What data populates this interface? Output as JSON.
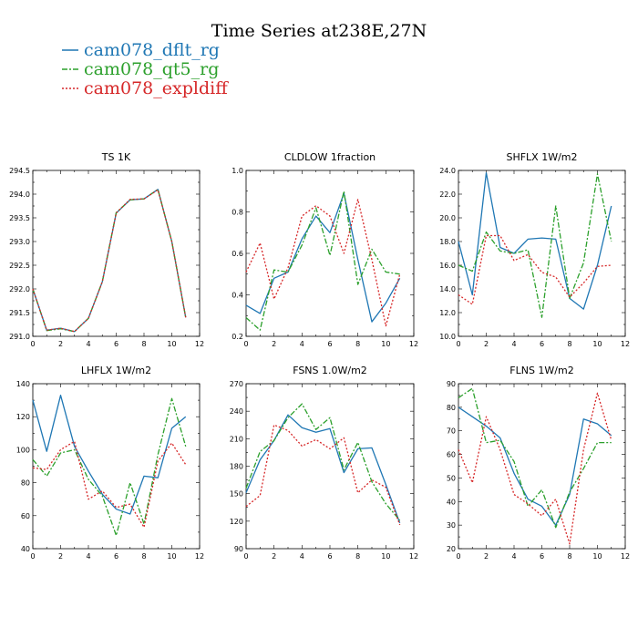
{
  "figure": {
    "title": "Time Series at238E,27N"
  },
  "legend": [
    {
      "name": "cam078_dflt_rg",
      "color": "#1f77b4",
      "dash": "solid"
    },
    {
      "name": "cam078_qt5_rg",
      "color": "#2ca02c",
      "dash": "longdash"
    },
    {
      "name": "cam078_expldiff",
      "color": "#d62728",
      "dash": "dotted"
    }
  ],
  "chart_data": [
    {
      "type": "line",
      "title": "TS   1K",
      "x": [
        0,
        1,
        2,
        3,
        4,
        5,
        6,
        7,
        8,
        9,
        10,
        11
      ],
      "xlim": [
        0,
        12
      ],
      "xticks": [
        0,
        2,
        4,
        6,
        8,
        10,
        12
      ],
      "ylim": [
        291.0,
        294.5
      ],
      "yticks": [
        291.0,
        291.5,
        292.0,
        292.5,
        293.0,
        293.5,
        294.0,
        294.5
      ],
      "ydecimals": 1,
      "series": [
        {
          "name": "cam078_dflt_rg",
          "values": [
            292.0,
            291.13,
            291.17,
            291.1,
            291.38,
            292.15,
            293.6,
            293.88,
            293.9,
            294.1,
            293.0,
            291.4
          ]
        },
        {
          "name": "cam078_qt5_rg",
          "values": [
            292.0,
            291.12,
            291.16,
            291.1,
            291.38,
            292.15,
            293.61,
            293.88,
            293.9,
            294.1,
            293.0,
            291.4
          ]
        },
        {
          "name": "cam078_expldiff",
          "values": [
            292.0,
            291.13,
            291.17,
            291.1,
            291.38,
            292.15,
            293.6,
            293.89,
            293.9,
            294.09,
            293.0,
            291.4
          ]
        }
      ]
    },
    {
      "type": "line",
      "title": "CLDLOW   1fraction",
      "x": [
        0,
        1,
        2,
        3,
        4,
        5,
        6,
        7,
        8,
        9,
        10,
        11
      ],
      "xlim": [
        0,
        12
      ],
      "xticks": [
        0,
        2,
        4,
        6,
        8,
        10,
        12
      ],
      "ylim": [
        0.2,
        1.0
      ],
      "yticks": [
        0.2,
        0.4,
        0.6,
        0.8,
        1.0
      ],
      "ydecimals": 1,
      "series": [
        {
          "name": "cam078_dflt_rg",
          "values": [
            0.35,
            0.31,
            0.48,
            0.51,
            0.67,
            0.78,
            0.7,
            0.89,
            0.57,
            0.27,
            0.36,
            0.48
          ]
        },
        {
          "name": "cam078_qt5_rg",
          "values": [
            0.29,
            0.23,
            0.52,
            0.51,
            0.64,
            0.82,
            0.59,
            0.9,
            0.45,
            0.62,
            0.51,
            0.5
          ]
        },
        {
          "name": "cam078_expldiff",
          "values": [
            0.51,
            0.65,
            0.38,
            0.53,
            0.78,
            0.83,
            0.78,
            0.6,
            0.86,
            0.57,
            0.25,
            0.5
          ]
        }
      ]
    },
    {
      "type": "line",
      "title": "SHFLX   1W/m2",
      "x": [
        0,
        1,
        2,
        3,
        4,
        5,
        6,
        7,
        8,
        9,
        10,
        11
      ],
      "xlim": [
        0,
        12
      ],
      "xticks": [
        0,
        2,
        4,
        6,
        8,
        10,
        12
      ],
      "ylim": [
        10.0,
        24.0
      ],
      "yticks": [
        10.0,
        12.0,
        14.0,
        16.0,
        18.0,
        20.0,
        22.0,
        24.0
      ],
      "ydecimals": 1,
      "series": [
        {
          "name": "cam078_dflt_rg",
          "values": [
            18.0,
            13.5,
            23.8,
            17.5,
            17.0,
            18.2,
            18.3,
            18.2,
            13.2,
            12.3,
            16.0,
            21.0
          ]
        },
        {
          "name": "cam078_qt5_rg",
          "values": [
            16.0,
            15.5,
            18.8,
            17.2,
            17.0,
            17.3,
            11.6,
            21.0,
            13.2,
            16.2,
            23.7,
            18.0
          ]
        },
        {
          "name": "cam078_expldiff",
          "values": [
            13.5,
            12.7,
            18.5,
            18.5,
            16.4,
            16.9,
            15.4,
            15.0,
            13.3,
            14.5,
            15.9,
            16.0
          ]
        }
      ]
    },
    {
      "type": "line",
      "title": "LHFLX   1W/m2",
      "x": [
        0,
        1,
        2,
        3,
        4,
        5,
        6,
        7,
        8,
        9,
        10,
        11
      ],
      "xlim": [
        0,
        12
      ],
      "xticks": [
        0,
        2,
        4,
        6,
        8,
        10,
        12
      ],
      "ylim": [
        40,
        140
      ],
      "yticks": [
        40,
        60,
        80,
        100,
        120,
        140
      ],
      "ydecimals": 0,
      "series": [
        {
          "name": "cam078_dflt_rg",
          "values": [
            130,
            99,
            133,
            102,
            87,
            73,
            64,
            61,
            84,
            83,
            113,
            120
          ]
        },
        {
          "name": "cam078_qt5_rg",
          "values": [
            94,
            84,
            98,
            100,
            82,
            72,
            48,
            80,
            55,
            97,
            131,
            102
          ]
        },
        {
          "name": "cam078_expldiff",
          "values": [
            89,
            88,
            100,
            105,
            70,
            75,
            65,
            67,
            53,
            93,
            104,
            91
          ]
        }
      ]
    },
    {
      "type": "line",
      "title": "FSNS   1.0W/m2",
      "x": [
        0,
        1,
        2,
        3,
        4,
        5,
        6,
        7,
        8,
        9,
        10,
        11
      ],
      "xlim": [
        0,
        12
      ],
      "xticks": [
        0,
        2,
        4,
        6,
        8,
        10,
        12
      ],
      "ylim": [
        90,
        270
      ],
      "yticks": [
        90,
        120,
        150,
        180,
        210,
        240,
        270
      ],
      "ydecimals": 0,
      "series": [
        {
          "name": "cam078_dflt_rg",
          "values": [
            151,
            187,
            208,
            236,
            222,
            217,
            221,
            173,
            199,
            200,
            160,
            118
          ]
        },
        {
          "name": "cam078_qt5_rg",
          "values": [
            156,
            196,
            208,
            233,
            248,
            220,
            233,
            176,
            206,
            163,
            139,
            121
          ]
        },
        {
          "name": "cam078_expldiff",
          "values": [
            136,
            148,
            225,
            219,
            202,
            209,
            199,
            211,
            151,
            165,
            157,
            116
          ]
        }
      ]
    },
    {
      "type": "line",
      "title": "FLNS   1W/m2",
      "x": [
        0,
        1,
        2,
        3,
        4,
        5,
        6,
        7,
        8,
        9,
        10,
        11
      ],
      "xlim": [
        0,
        12
      ],
      "xticks": [
        0,
        2,
        4,
        6,
        8,
        10,
        12
      ],
      "ylim": [
        20,
        90
      ],
      "yticks": [
        20,
        30,
        40,
        50,
        60,
        70,
        80,
        90
      ],
      "ydecimals": 0,
      "series": [
        {
          "name": "cam078_dflt_rg",
          "values": [
            80,
            76,
            72,
            67,
            52,
            41,
            38,
            30,
            43,
            75,
            73,
            68
          ]
        },
        {
          "name": "cam078_qt5_rg",
          "values": [
            84,
            88,
            65,
            66,
            57,
            38,
            45,
            29,
            44,
            54,
            65,
            65
          ]
        },
        {
          "name": "cam078_expldiff",
          "values": [
            62,
            48,
            76,
            62,
            43,
            39,
            34,
            41,
            22,
            62,
            86,
            66
          ]
        }
      ]
    }
  ]
}
